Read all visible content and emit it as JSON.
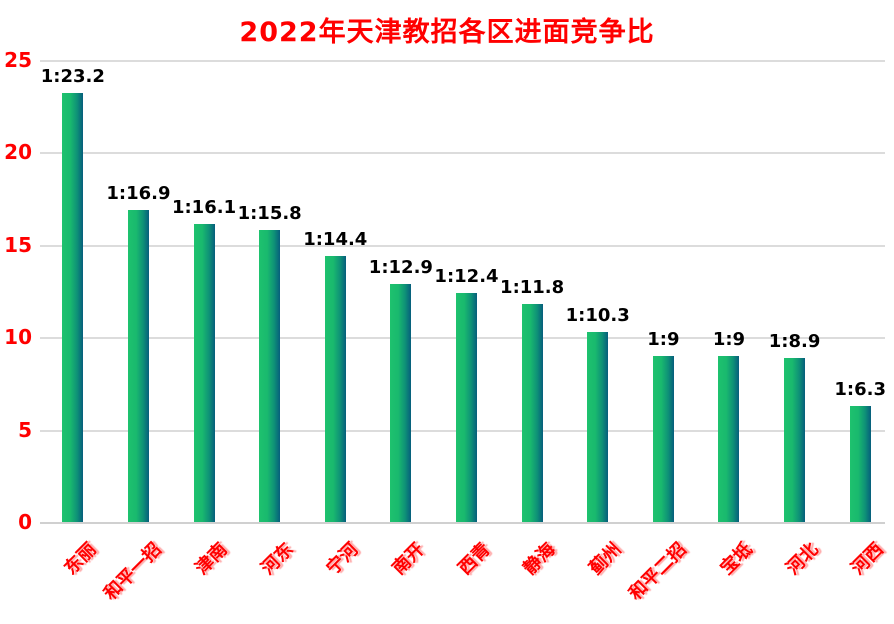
{
  "title": "2022年天津教招各区进面竞争比",
  "colors": {
    "title": "#ff0000",
    "axis_labels": "#ff0000",
    "x_labels": "#ff0000",
    "x_label_shadow": "#ffaaaa",
    "data_labels": "#000000",
    "bar_gradient_left": "#1ec26e",
    "bar_gradient_right": "#065e7c",
    "gridline": "#dcdcdc",
    "background": "#ffffff"
  },
  "chart_data": {
    "type": "bar",
    "title": "2022年天津教招各区进面竞争比",
    "categories": [
      "东丽",
      "和平一招",
      "津南",
      "河东",
      "宁河",
      "南开",
      "西青",
      "静海",
      "蓟州",
      "和平二招",
      "宝坻",
      "河北",
      "河西"
    ],
    "values": [
      23.2,
      16.9,
      16.1,
      15.8,
      14.4,
      12.9,
      12.4,
      11.8,
      10.3,
      9,
      9,
      8.9,
      6.3
    ],
    "data_labels": [
      "1:23.2",
      "1:16.9",
      "1:16.1",
      "1:15.8",
      "1:14.4",
      "1:12.9",
      "1:12.4",
      "1:11.8",
      "1:10.3",
      "1:9",
      "1:9",
      "1:8.9",
      "1:6.3"
    ],
    "xlabel": "",
    "ylabel": "",
    "y_ticks": [
      0,
      5,
      10,
      15,
      20,
      25
    ],
    "ylim": [
      0,
      25
    ],
    "grid": true,
    "legend_position": "none",
    "bar_orientation": "vertical",
    "x_label_rotation_deg": 45
  }
}
